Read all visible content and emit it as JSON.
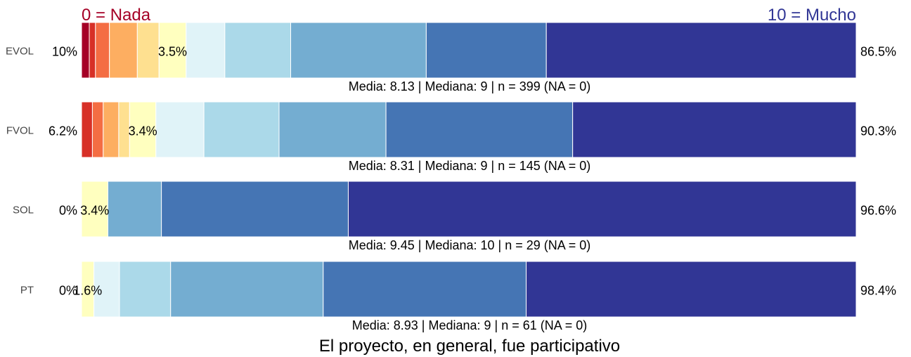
{
  "chart_data": {
    "type": "bar",
    "orientation": "horizontal",
    "stacked": true,
    "title": "El proyecto, en general, fue participativo",
    "scale_labels": {
      "low": "0 = Nada",
      "high": "10 = Mucho"
    },
    "levels": [
      "0",
      "1",
      "2",
      "3",
      "4",
      "5",
      "6",
      "7",
      "8",
      "9",
      "10"
    ],
    "level_colors": [
      "#a50026",
      "#d73027",
      "#f46d43",
      "#fdae61",
      "#fee090",
      "#ffffbf",
      "#e0f3f8",
      "#abd9e9",
      "#74add1",
      "#4575b4",
      "#313695"
    ],
    "xlim": [
      0,
      100
    ],
    "categories": [
      "EVOL",
      "FVOL",
      "SOL",
      "PT"
    ],
    "rows": [
      {
        "label": "EVOL",
        "values": [
          1.0,
          0.8,
          1.8,
          3.6,
          2.8,
          3.5,
          5.0,
          8.5,
          17.5,
          15.5,
          40.0
        ],
        "left_pct": "10%",
        "mid_pct": "3.5%",
        "right_pct": "86.5%",
        "summary": "Media: 8.13 | Mediana: 9 | n = 399 (NA = 0)"
      },
      {
        "label": "FVOL",
        "values": [
          0,
          1.4,
          1.4,
          2.0,
          1.4,
          3.4,
          6.2,
          9.7,
          13.8,
          24.1,
          36.6
        ],
        "left_pct": "6.2%",
        "mid_pct": "3.4%",
        "right_pct": "90.3%",
        "summary": "Media: 8.31 | Mediana: 9 | n = 145 (NA = 0)"
      },
      {
        "label": "SOL",
        "values": [
          0,
          0,
          0,
          0,
          0,
          3.4,
          0,
          0,
          6.9,
          24.1,
          65.5
        ],
        "left_pct": "0%",
        "mid_pct": "3.4%",
        "right_pct": "96.6%",
        "summary": "Media: 9.45 | Mediana: 10 | n = 29 (NA = 0)"
      },
      {
        "label": "PT",
        "values": [
          0,
          0,
          0,
          0,
          0,
          1.6,
          3.3,
          6.6,
          19.7,
          26.2,
          42.6
        ],
        "left_pct": "0%",
        "mid_pct": "1.6%",
        "right_pct": "98.4%",
        "summary": "Media: 8.93 | Mediana: 9 | n = 61 (NA = 0)"
      }
    ]
  },
  "colors": {
    "low_label": "#a50026",
    "high_label": "#313695",
    "text": "#000000",
    "row_label": "#444444"
  }
}
